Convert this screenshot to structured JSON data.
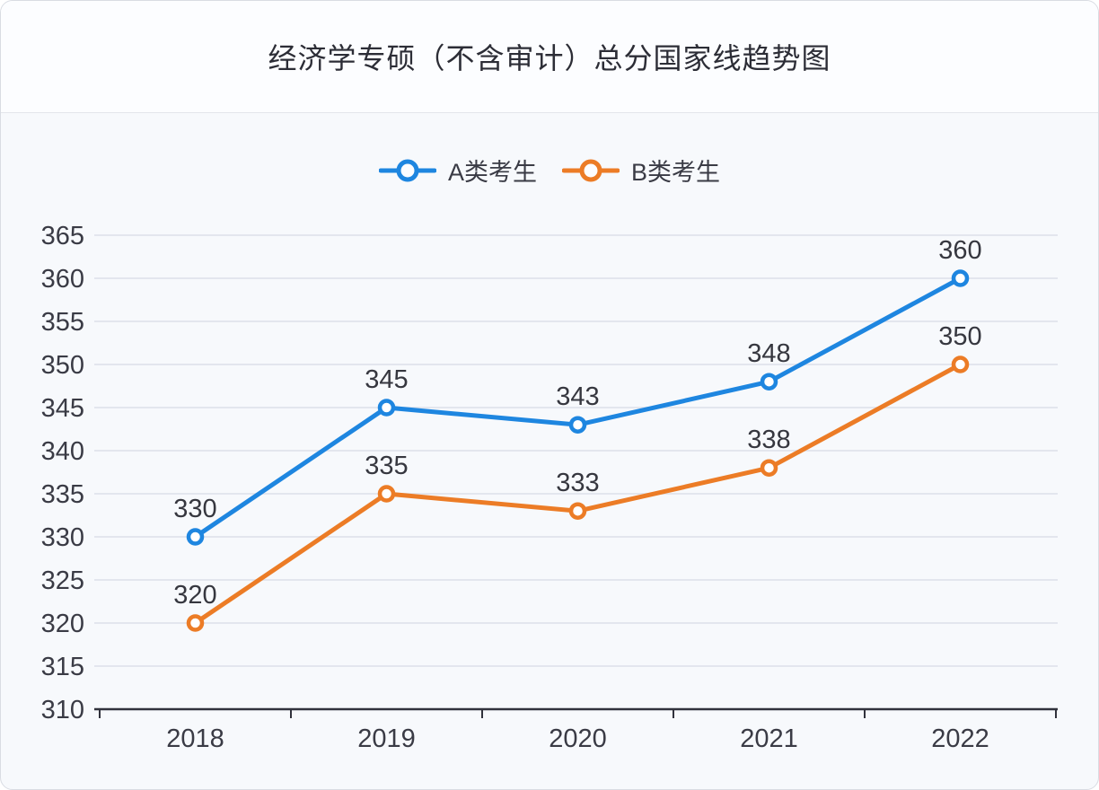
{
  "title": "经济学专硕（不含审计）总分国家线趋势图",
  "legend": {
    "items": [
      {
        "label": "A类考生",
        "color": "#1E86E0"
      },
      {
        "label": "B类考生",
        "color": "#EC7C26"
      }
    ]
  },
  "chart_data": {
    "type": "line",
    "title": "经济学专硕（不含审计）总分国家线趋势图",
    "categories": [
      "2018",
      "2019",
      "2020",
      "2021",
      "2022"
    ],
    "series": [
      {
        "name": "A类考生",
        "color": "#1E86E0",
        "values": [
          330,
          345,
          343,
          348,
          360
        ]
      },
      {
        "name": "B类考生",
        "color": "#EC7C26",
        "values": [
          320,
          335,
          333,
          338,
          350
        ]
      }
    ],
    "ylim": [
      310,
      365
    ],
    "ytick_step": 5,
    "grid": true,
    "legend_position": "top",
    "marker": "open-circle",
    "data_labels": true
  },
  "colors": {
    "axis": "#31323c",
    "grid_line": "#e3e6ee",
    "tick_label": "#3a3b45",
    "data_label": "#36373f",
    "marker_fill": "#ffffff",
    "card_border": "#d9dce3",
    "divider": "#e3e5eb",
    "title_bg": "#fcfdff",
    "chart_bg": "#f7f9fc"
  }
}
